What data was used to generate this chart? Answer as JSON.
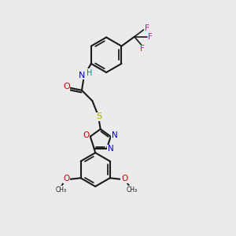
{
  "background_color": "#ebebeb",
  "line_color": "#1a1a1a",
  "bond_width": 1.5,
  "colors": {
    "C": "#1a1a1a",
    "N": "#0000cc",
    "O": "#cc0000",
    "S": "#aaaa00",
    "F": "#cc00cc",
    "H": "#008888"
  },
  "figsize": [
    3.0,
    3.0
  ],
  "dpi": 100
}
